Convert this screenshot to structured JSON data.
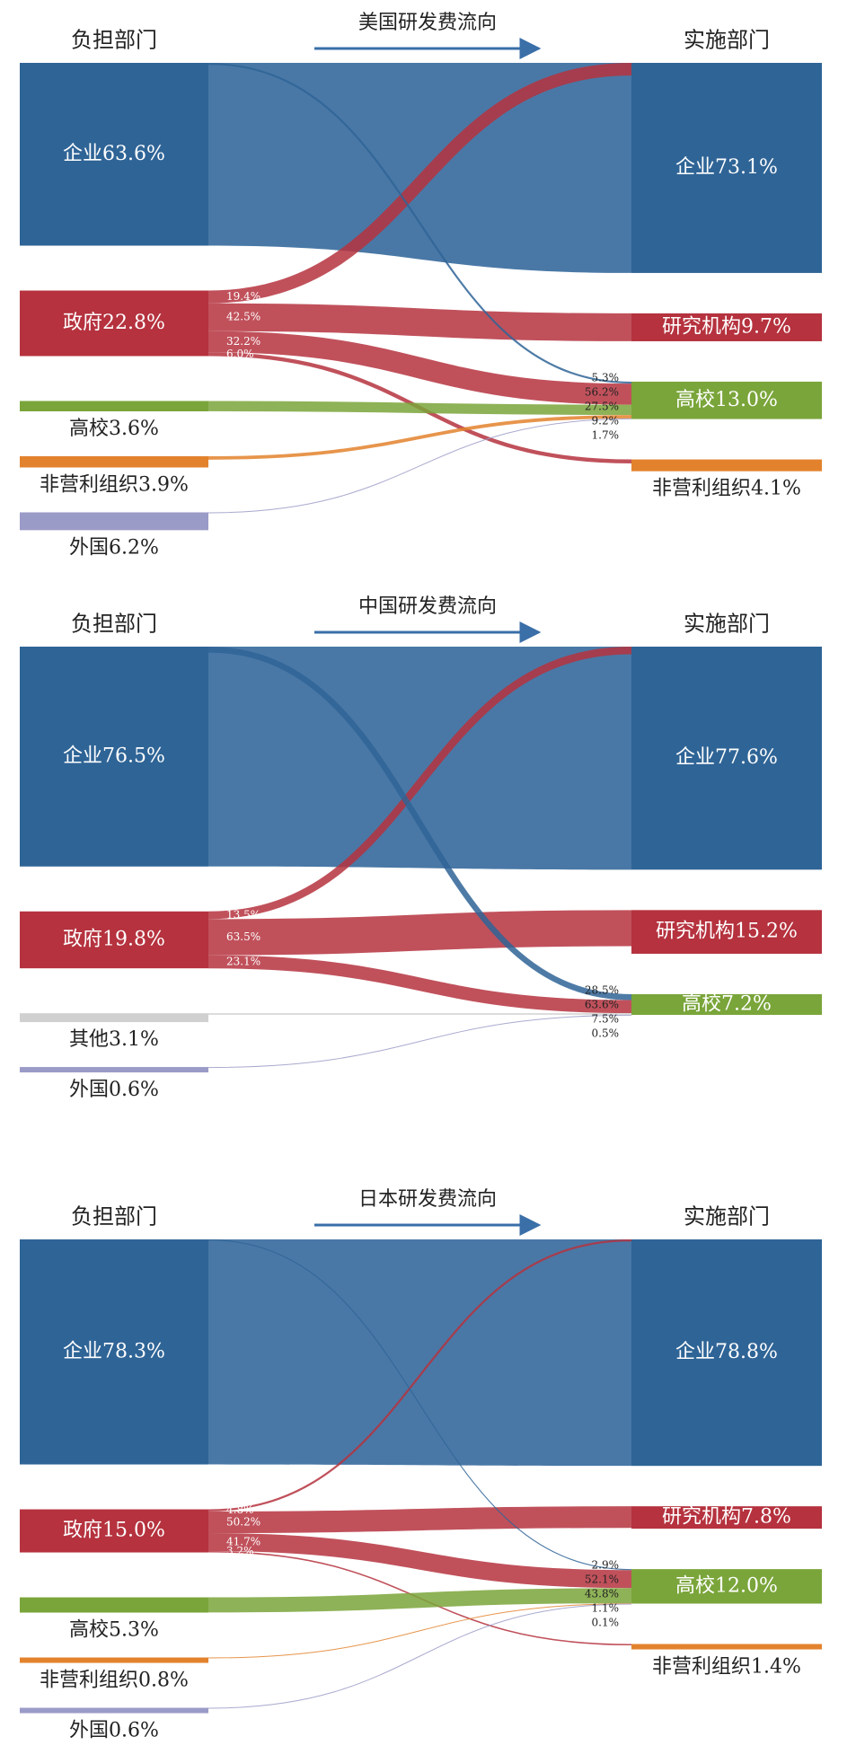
{
  "diagrams": [
    {
      "title": "美国研发费流向",
      "source_header": "负担部门",
      "target_header": "实施部门",
      "sources": [
        {
          "label": "企业63.6%",
          "value": 63.6,
          "color": "#2f6496"
        },
        {
          "label": "政府22.8%",
          "value": 22.8,
          "color": "#b5323e"
        },
        {
          "label": "高校3.6%",
          "value": 3.6,
          "color": "#7aa53a"
        },
        {
          "label": "非营利组织3.9%",
          "value": 3.9,
          "color": "#e3822d"
        },
        {
          "label": "外国6.2%",
          "value": 6.2,
          "color": "#9b9bc8"
        }
      ],
      "targets": [
        {
          "label": "企业73.1%",
          "value": 73.1,
          "color": "#2f6496"
        },
        {
          "label": "研究机构9.7%",
          "value": 9.7,
          "color": "#b5323e"
        },
        {
          "label": "高校13.0%",
          "value": 13.0,
          "color": "#7aa53a"
        },
        {
          "label": "非营利组织4.1%",
          "value": 4.1,
          "color": "#e3822d"
        }
      ],
      "source_shares": {
        "node": 1,
        "values": [
          19.4,
          42.5,
          32.2,
          6.0
        ],
        "labels": [
          "19.4%",
          "42.5%",
          "32.2%",
          "6.0%"
        ]
      },
      "target_shares": {
        "node": 2,
        "values": [
          5.3,
          56.2,
          27.5,
          9.2,
          1.7
        ],
        "labels": [
          "5.3%",
          "56.2%",
          "27.5%",
          "9.2%",
          "1.7%"
        ]
      }
    },
    {
      "title": "中国研发费流向",
      "source_header": "负担部门",
      "target_header": "实施部门",
      "sources": [
        {
          "label": "企业76.5%",
          "value": 76.5,
          "color": "#2f6496"
        },
        {
          "label": "政府19.8%",
          "value": 19.8,
          "color": "#b5323e"
        },
        {
          "label": "其他3.1%",
          "value": 3.1,
          "color": "#d0d0d0"
        },
        {
          "label": "外国0.6%",
          "value": 0.6,
          "color": "#9b9bc8"
        }
      ],
      "targets": [
        {
          "label": "企业77.6%",
          "value": 77.6,
          "color": "#2f6496"
        },
        {
          "label": "研究机构15.2%",
          "value": 15.2,
          "color": "#b5323e"
        },
        {
          "label": "高校7.2%",
          "value": 7.2,
          "color": "#7aa53a"
        }
      ],
      "source_shares": {
        "node": 1,
        "values": [
          13.5,
          63.5,
          23.1
        ],
        "labels": [
          "13.5%",
          "63.5%",
          "23.1%"
        ]
      },
      "target_shares": {
        "node": 2,
        "values": [
          28.5,
          63.6,
          7.5,
          0.5
        ],
        "labels": [
          "28.5%",
          "63.6%",
          "7.5%",
          "0.5%"
        ]
      }
    },
    {
      "title": "日本研发费流向",
      "source_header": "负担部门",
      "target_header": "实施部门",
      "sources": [
        {
          "label": "企业78.3%",
          "value": 78.3,
          "color": "#2f6496"
        },
        {
          "label": "政府15.0%",
          "value": 15.0,
          "color": "#b5323e"
        },
        {
          "label": "高校5.3%",
          "value": 5.3,
          "color": "#7aa53a"
        },
        {
          "label": "非营利组织0.8%",
          "value": 0.8,
          "color": "#e3822d"
        },
        {
          "label": "外国0.6%",
          "value": 0.6,
          "color": "#9b9bc8"
        }
      ],
      "targets": [
        {
          "label": "企业78.8%",
          "value": 78.8,
          "color": "#2f6496"
        },
        {
          "label": "研究机构7.8%",
          "value": 7.8,
          "color": "#b5323e"
        },
        {
          "label": "高校12.0%",
          "value": 12.0,
          "color": "#7aa53a"
        },
        {
          "label": "非营利组织1.4%",
          "value": 1.4,
          "color": "#e3822d"
        }
      ],
      "source_shares": {
        "node": 1,
        "values": [
          4.8,
          50.2,
          41.7,
          3.2
        ],
        "labels": [
          "4.8%",
          "50.2%",
          "41.7%",
          "3.2%"
        ]
      },
      "target_shares": {
        "node": 2,
        "values": [
          2.9,
          52.1,
          43.8,
          1.1,
          0.1
        ],
        "labels": [
          "2.9%",
          "52.1%",
          "43.8%",
          "1.1%",
          "0.1%"
        ]
      }
    }
  ]
}
